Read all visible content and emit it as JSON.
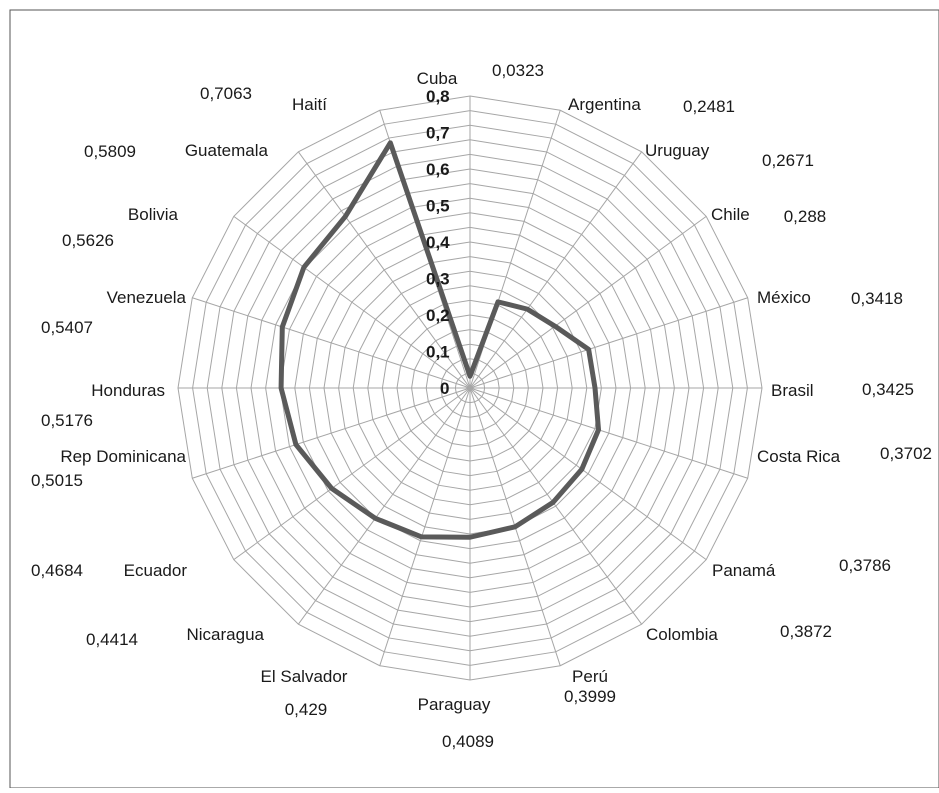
{
  "chart_data": {
    "type": "radar",
    "title": "",
    "categories": [
      "Cuba",
      "Argentina",
      "Uruguay",
      "Chile",
      "México",
      "Brasil",
      "Costa Rica",
      "Panamá",
      "Colombia",
      "Perú",
      "Paraguay",
      "El Salvador",
      "Nicaragua",
      "Ecuador",
      "Rep Dominicana",
      "Honduras",
      "Venezuela",
      "Bolivia",
      "Guatemala",
      "Haití"
    ],
    "value_labels": [
      "0,0323",
      "0,2481",
      "0,2671",
      "0,288",
      "0,3418",
      "0,3425",
      "0,3702",
      "0,3786",
      "0,3872",
      "0,3999",
      "0,4089",
      "0,429",
      "0,4414",
      "0,4684",
      "0,5015",
      "0,5176",
      "0,5407",
      "0,5626",
      "0,5809",
      "0,7063"
    ],
    "series": [
      {
        "values": [
          0.0323,
          0.2481,
          0.2671,
          0.288,
          0.3418,
          0.3425,
          0.3702,
          0.3786,
          0.3872,
          0.3999,
          0.4089,
          0.429,
          0.4414,
          0.4684,
          0.5015,
          0.5176,
          0.5407,
          0.5626,
          0.5809,
          0.7063
        ]
      }
    ],
    "rlim": [
      0,
      0.8
    ],
    "ticks": [
      "0",
      "0,1",
      "0,2",
      "0,3",
      "0,4",
      "0,5",
      "0,6",
      "0,7",
      "0,8"
    ],
    "grid": true,
    "colors": {
      "series": "#5a5a5a",
      "grid": "#a6a6a6",
      "frame": "#555555"
    }
  }
}
